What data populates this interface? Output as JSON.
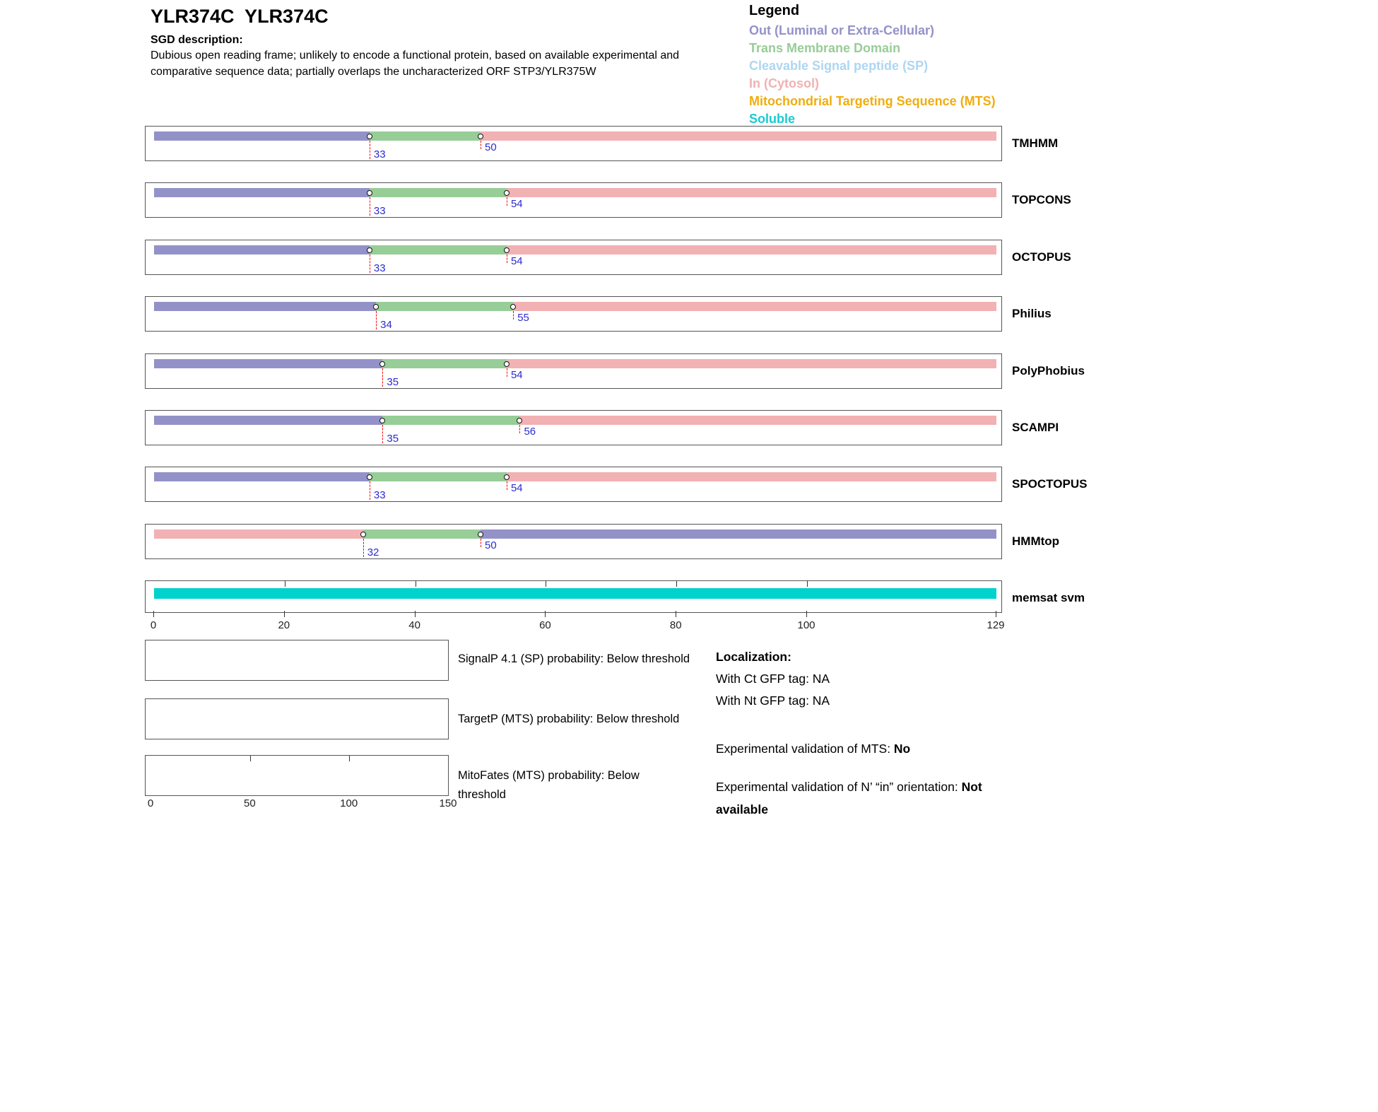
{
  "header": {
    "title": "YLR374C  YLR374C",
    "sgd_label": "SGD description:",
    "description": "Dubious open reading frame; unlikely to encode a functional protein, based on available experimental and comparative sequence data; partially overlaps the uncharacterized ORF STP3/YLR375W"
  },
  "legend": {
    "title": "Legend",
    "items": [
      {
        "id": "out",
        "label": "Out (Luminal or Extra-Cellular)",
        "color": "#9392c8"
      },
      {
        "id": "tm",
        "label": "Trans Membrane Domain",
        "color": "#97cd97"
      },
      {
        "id": "sp",
        "label": "Cleavable Signal peptide (SP)",
        "color": "#aed6f1"
      },
      {
        "id": "in",
        "label": "In (Cytosol)",
        "color": "#f2b1b3"
      },
      {
        "id": "mts",
        "label": "Mitochondrial Targeting Sequence (MTS)",
        "color": "#f0ad0e"
      },
      {
        "id": "soluble",
        "label": "Soluble",
        "color": "#17ccd3"
      }
    ]
  },
  "colors": {
    "marker_label": "#2b2bd0",
    "marker_line": "#ff0000",
    "box_border": "#555555"
  },
  "chart_data": {
    "type": "topology-tracks",
    "sequence_length": 129,
    "axis_ticks": [
      0,
      20,
      40,
      60,
      80,
      100,
      129
    ],
    "region_colors": {
      "out": "#9392c8",
      "tm": "#97cd97",
      "in": "#f2b1b3",
      "soluble": "#00d2ce"
    },
    "tracks": [
      {
        "name": "TMHMM",
        "segments": [
          {
            "start": 0,
            "end": 33,
            "region": "out"
          },
          {
            "start": 33,
            "end": 50,
            "region": "tm"
          },
          {
            "start": 50,
            "end": 129,
            "region": "in"
          }
        ],
        "markers": [
          33,
          50
        ]
      },
      {
        "name": "TOPCONS",
        "segments": [
          {
            "start": 0,
            "end": 33,
            "region": "out"
          },
          {
            "start": 33,
            "end": 54,
            "region": "tm"
          },
          {
            "start": 54,
            "end": 129,
            "region": "in"
          }
        ],
        "markers": [
          33,
          54
        ]
      },
      {
        "name": "OCTOPUS",
        "segments": [
          {
            "start": 0,
            "end": 33,
            "region": "out"
          },
          {
            "start": 33,
            "end": 54,
            "region": "tm"
          },
          {
            "start": 54,
            "end": 129,
            "region": "in"
          }
        ],
        "markers": [
          33,
          54
        ]
      },
      {
        "name": "Philius",
        "segments": [
          {
            "start": 0,
            "end": 34,
            "region": "out"
          },
          {
            "start": 34,
            "end": 55,
            "region": "tm"
          },
          {
            "start": 55,
            "end": 129,
            "region": "in"
          }
        ],
        "markers": [
          34,
          55
        ]
      },
      {
        "name": "PolyPhobius",
        "segments": [
          {
            "start": 0,
            "end": 35,
            "region": "out"
          },
          {
            "start": 35,
            "end": 54,
            "region": "tm"
          },
          {
            "start": 54,
            "end": 129,
            "region": "in"
          }
        ],
        "markers": [
          35,
          54
        ]
      },
      {
        "name": "SCAMPI",
        "segments": [
          {
            "start": 0,
            "end": 35,
            "region": "out"
          },
          {
            "start": 35,
            "end": 56,
            "region": "tm"
          },
          {
            "start": 56,
            "end": 129,
            "region": "in"
          }
        ],
        "markers": [
          35,
          56
        ]
      },
      {
        "name": "SPOCTOPUS",
        "segments": [
          {
            "start": 0,
            "end": 33,
            "region": "out"
          },
          {
            "start": 33,
            "end": 54,
            "region": "tm"
          },
          {
            "start": 54,
            "end": 129,
            "region": "in"
          }
        ],
        "markers": [
          33,
          54
        ]
      },
      {
        "name": "HMMtop",
        "segments": [
          {
            "start": 0,
            "end": 32,
            "region": "in"
          },
          {
            "start": 32,
            "end": 50,
            "region": "tm"
          },
          {
            "start": 50,
            "end": 129,
            "region": "out"
          }
        ],
        "markers": [
          32,
          50
        ]
      },
      {
        "name": "memsat svm",
        "segments": [
          {
            "start": 0,
            "end": 129,
            "region": "soluble"
          }
        ],
        "markers": [],
        "top_ticks": [
          20,
          40,
          60,
          80,
          100
        ]
      }
    ]
  },
  "probability_plots": [
    {
      "caption": "SignalP 4.1 (SP) probability: Below threshold"
    },
    {
      "caption": "TargetP (MTS) probability: Below threshold"
    },
    {
      "caption": "MitoFates (MTS) probability: Below threshold",
      "axis_ticks": [
        0,
        50,
        100,
        150
      ],
      "axis_max": 150,
      "top_ticks": [
        50,
        100
      ]
    }
  ],
  "info": {
    "localization_title": "Localization:",
    "ct_gfp": "With Ct GFP tag: NA",
    "nt_gfp": "With Nt GFP tag: NA",
    "mts_validation_label": "Experimental validation of MTS: ",
    "mts_validation_value": "No",
    "orientation_label": "Experimental validation of N’ “in” orientation: ",
    "orientation_value": "Not available"
  }
}
